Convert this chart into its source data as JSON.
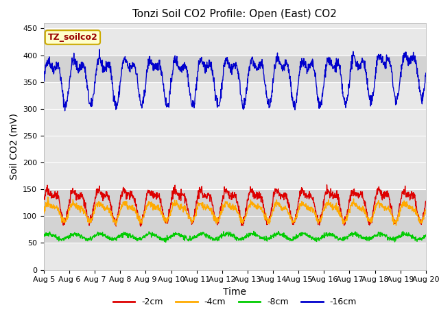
{
  "title": "Tonzi Soil CO2 Profile: Open (East) CO2",
  "ylabel": "Soil CO2 (mV)",
  "xlabel": "Time",
  "ylim": [
    0,
    460
  ],
  "yticks": [
    0,
    50,
    100,
    150,
    200,
    250,
    300,
    350,
    400,
    450
  ],
  "x_tick_labels": [
    "Aug 5",
    "Aug 6",
    "Aug 7",
    "Aug 8",
    "Aug 9",
    "Aug 10",
    "Aug 11",
    "Aug 12",
    "Aug 13",
    "Aug 14",
    "Aug 15",
    "Aug 16",
    "Aug 17",
    "Aug 18",
    "Aug 19",
    "Aug 20"
  ],
  "series": {
    "-2cm": {
      "color": "#dd0000"
    },
    "-4cm": {
      "color": "#ffaa00"
    },
    "-8cm": {
      "color": "#00cc00"
    },
    "-16cm": {
      "color": "#0000cc"
    }
  },
  "background_color": "#ffffff",
  "plot_bg_color": "#e8e8e8",
  "band_color": "#d3d3d3",
  "title_fontsize": 11,
  "label_fontsize": 10,
  "tick_fontsize": 8,
  "legend_fontsize": 9,
  "annotation_text": "TZ_soilco2",
  "annotation_bg": "#ffffcc",
  "annotation_border": "#ccaa00"
}
